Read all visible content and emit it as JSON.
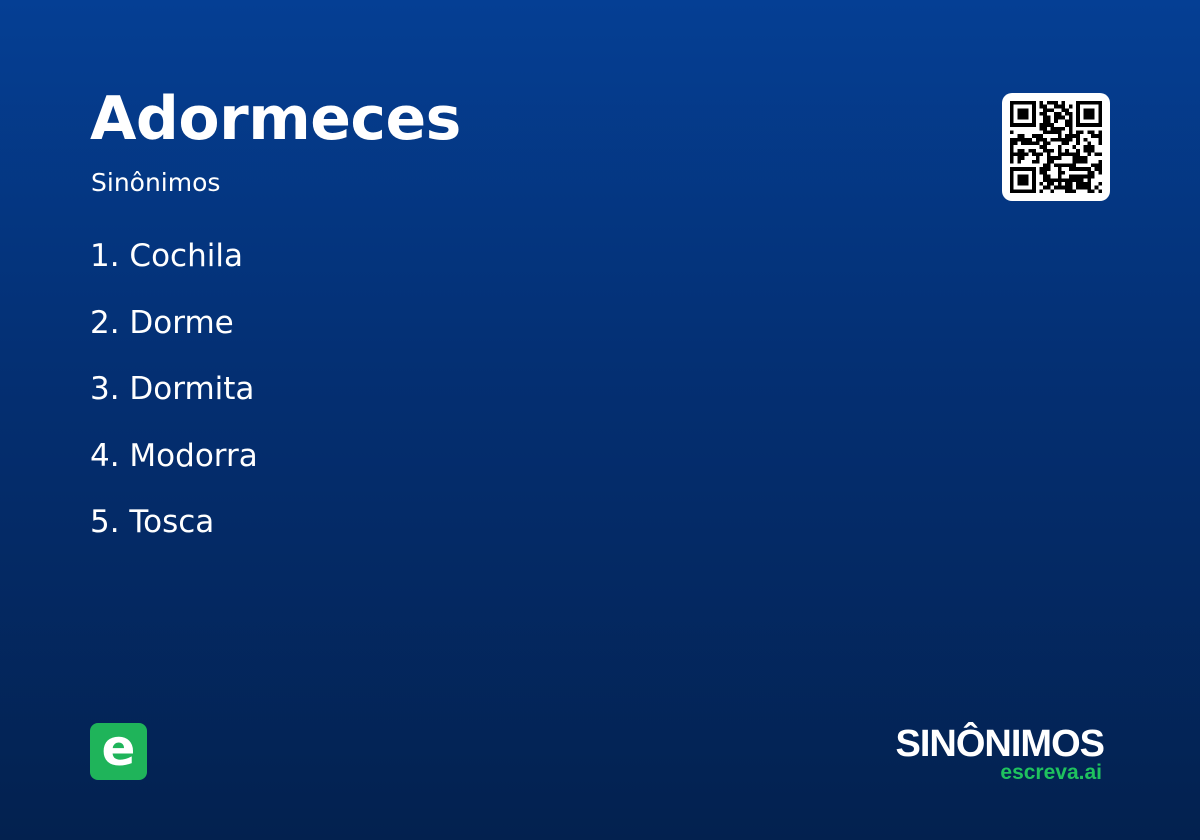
{
  "title": "Adormeces",
  "subtitle": "Sinônimos",
  "synonyms": [
    "1. Cochila",
    "2. Dorme",
    "3. Dormita",
    "4. Modorra",
    "5. Tosca"
  ],
  "qr_icon": "qr-code",
  "logo_letter": "e",
  "brand": {
    "name": "SINÔNIMOS",
    "site": "escreva.ai"
  },
  "colors": {
    "accent": "#1fb45a",
    "background_top": "#053f94",
    "background_bottom": "#03214f"
  }
}
